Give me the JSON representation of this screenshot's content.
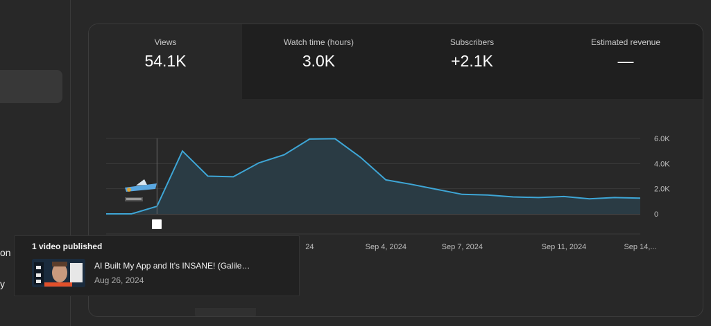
{
  "sidebar": {
    "partial_text_1": "on",
    "partial_text_2": "y"
  },
  "metrics": [
    {
      "label": "Views",
      "value": "54.1K"
    },
    {
      "label": "Watch time (hours)",
      "value": "3.0K"
    },
    {
      "label": "Subscribers",
      "value": "+2.1K"
    },
    {
      "label": "Estimated revenue",
      "value": "—"
    }
  ],
  "colors": {
    "line": "#3ea6d6",
    "area": "#2a3b44",
    "background": "#282828"
  },
  "chart_data": {
    "type": "area",
    "series": [
      {
        "name": "Views",
        "values": [
          0,
          0,
          600,
          5000,
          3000,
          2950,
          4050,
          4700,
          5950,
          5980,
          4500,
          2700,
          2350,
          1950,
          1550,
          1500,
          1350,
          1300,
          1380,
          1200,
          1300,
          1250
        ]
      }
    ],
    "y_ticks": [
      "6.0K",
      "4.0K",
      "2.0K",
      "0"
    ],
    "y_tick_values": [
      6000,
      4000,
      2000,
      0
    ],
    "ylim": [
      0,
      6000
    ],
    "x_tick_labels": [
      {
        "label": "24",
        "index": 8
      },
      {
        "label": "Sep 4, 2024",
        "index": 11
      },
      {
        "label": "Sep 7, 2024",
        "index": 14
      },
      {
        "label": "Sep 11, 2024",
        "index": 18
      },
      {
        "label": "Sep 14,...",
        "index": 21
      }
    ],
    "event_marker_index": 2
  },
  "tooltip": {
    "title": "1 video published",
    "video_title": "AI Built My App and It's INSANE! (Galile…",
    "date": "Aug 26, 2024"
  }
}
